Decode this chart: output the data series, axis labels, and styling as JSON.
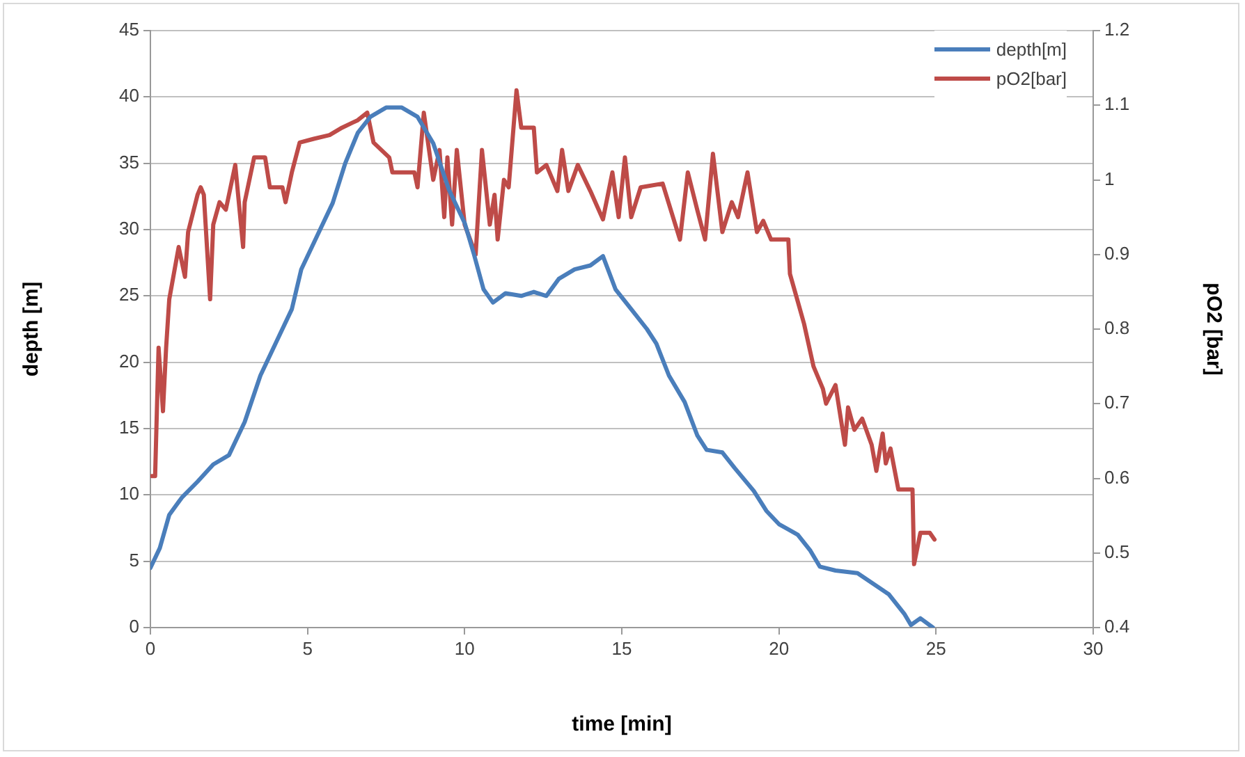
{
  "chart_data": {
    "type": "line",
    "xlabel": "time [min]",
    "ylabel": "depth [m]",
    "y2label": "pO2 [bar]",
    "xlim": [
      0,
      30
    ],
    "xticks": [
      0,
      5,
      10,
      15,
      20,
      25,
      30
    ],
    "ylim": [
      0,
      45
    ],
    "yticks": [
      0,
      5,
      10,
      15,
      20,
      25,
      30,
      35,
      40,
      45
    ],
    "y2lim": [
      0.4,
      1.2
    ],
    "y2ticks": [
      0.4,
      0.5,
      0.6,
      0.7,
      0.8,
      0.9,
      1,
      1.1,
      1.2
    ],
    "grid": "y",
    "legend": "top right",
    "marker": "none",
    "line_style": "solid",
    "series": [
      {
        "name": "depth[m]",
        "color": "#4a7ebb",
        "x": [
          0,
          0.3,
          0.6,
          1,
          1.5,
          2,
          2.5,
          3,
          3.5,
          4,
          4.5,
          4.8,
          5.3,
          5.8,
          6.2,
          6.6,
          7,
          7.5,
          8,
          8.5,
          9,
          9.5,
          10,
          10.3,
          10.6,
          10.9,
          11.3,
          11.8,
          12.2,
          12.6,
          13,
          13.5,
          14,
          14.4,
          14.8,
          15.3,
          15.8,
          16.1,
          16.5,
          17,
          17.4,
          17.7,
          18.2,
          18.6,
          19.2,
          19.6,
          20,
          20.6,
          21,
          21.3,
          21.8,
          22.5,
          23,
          23.5,
          24,
          24.2,
          24.5,
          24.9
        ],
        "values": [
          4.5,
          6,
          8.5,
          9.8,
          11,
          12.3,
          13,
          15.5,
          19,
          21.5,
          24,
          27,
          29.5,
          32,
          35,
          37.3,
          38.5,
          39.2,
          39.2,
          38.5,
          36.5,
          33,
          30.5,
          28.1,
          25.5,
          24.5,
          25.2,
          25,
          25.3,
          25,
          26.3,
          27,
          27.3,
          28,
          25.5,
          24,
          22.5,
          21.4,
          19,
          17,
          14.5,
          13.4,
          13.2,
          12,
          10.3,
          8.8,
          7.8,
          7,
          5.8,
          4.6,
          4.3,
          4.1,
          3.3,
          2.5,
          1,
          0.2,
          0.7,
          0
        ]
      },
      {
        "name": "pO2[bar]",
        "color": "#be4b48",
        "axis": "y2",
        "x": [
          0.04,
          0.15,
          0.26,
          0.4,
          0.5,
          0.6,
          0.9,
          1.1,
          1.2,
          1.5,
          1.6,
          1.7,
          1.9,
          2.0,
          2.2,
          2.4,
          2.7,
          2.95,
          3.0,
          3.3,
          3.65,
          3.8,
          4.2,
          4.3,
          4.5,
          4.75,
          5.2,
          5.7,
          6.1,
          6.6,
          6.9,
          7.1,
          7.6,
          7.7,
          8.4,
          8.5,
          8.7,
          9.0,
          9.2,
          9.35,
          9.45,
          9.6,
          9.75,
          10.0,
          10.35,
          10.55,
          10.8,
          10.95,
          11.05,
          11.25,
          11.4,
          11.65,
          11.8,
          12.2,
          12.3,
          12.6,
          12.95,
          13.1,
          13.3,
          13.6,
          14.0,
          14.4,
          14.7,
          14.9,
          15.1,
          15.3,
          15.6,
          16.3,
          16.85,
          17.1,
          17.4,
          17.65,
          17.9,
          18.2,
          18.5,
          18.7,
          19.0,
          19.3,
          19.5,
          19.75,
          20.3,
          20.35,
          20.6,
          20.8,
          21.1,
          21.4,
          21.5,
          21.8,
          22.1,
          22.2,
          22.4,
          22.65,
          22.95,
          23.1,
          23.3,
          23.4,
          23.55,
          23.8,
          24.25,
          24.3,
          24.5,
          24.8,
          24.95
        ],
        "values": [
          0.603,
          0.603,
          0.775,
          0.69,
          0.775,
          0.84,
          0.91,
          0.87,
          0.93,
          0.98,
          0.99,
          0.98,
          0.84,
          0.94,
          0.97,
          0.96,
          1.02,
          0.91,
          0.97,
          1.03,
          1.03,
          0.99,
          0.99,
          0.97,
          1.01,
          1.05,
          1.055,
          1.06,
          1.07,
          1.08,
          1.09,
          1.05,
          1.03,
          1.01,
          1.01,
          0.99,
          1.09,
          1.0,
          1.04,
          0.95,
          1.03,
          0.94,
          1.04,
          0.94,
          0.9,
          1.04,
          0.94,
          0.98,
          0.92,
          1.0,
          0.99,
          1.12,
          1.07,
          1.07,
          1.01,
          1.02,
          0.985,
          1.04,
          0.985,
          1.02,
          0.985,
          0.947,
          1.01,
          0.95,
          1.03,
          0.95,
          0.99,
          0.995,
          0.92,
          1.01,
          0.96,
          0.92,
          1.035,
          0.93,
          0.97,
          0.95,
          1.01,
          0.93,
          0.945,
          0.92,
          0.92,
          0.874,
          0.837,
          0.807,
          0.75,
          0.72,
          0.7,
          0.725,
          0.645,
          0.695,
          0.665,
          0.68,
          0.645,
          0.61,
          0.66,
          0.62,
          0.64,
          0.585,
          0.585,
          0.485,
          0.527,
          0.527,
          0.518
        ]
      }
    ]
  }
}
